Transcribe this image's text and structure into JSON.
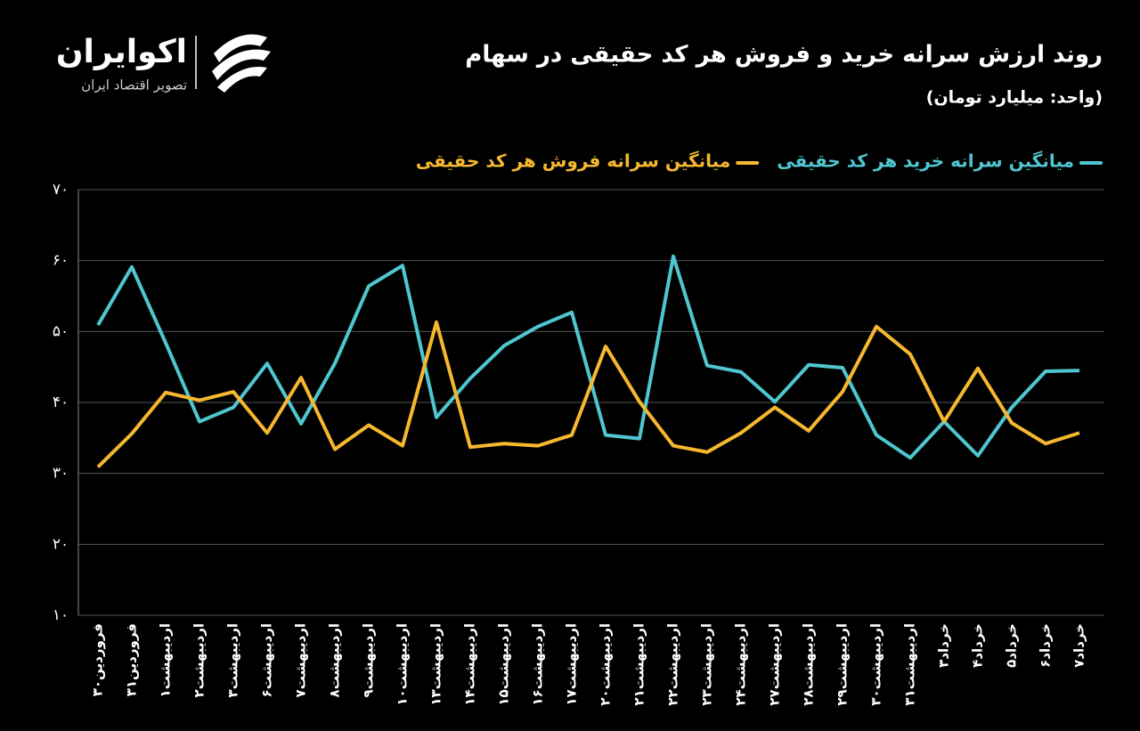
{
  "brand": {
    "name": "اکوایران",
    "tagline": "تصویر اقتصاد ایران"
  },
  "chart_data": {
    "type": "line",
    "title": "روند ارزش سرانه خرید و فروش هر کد حقیقی در سهام",
    "subtitle": "(واحد: میلیارد تومان)",
    "categories": [
      "۳۰فروردین",
      "۳۱فروردین",
      "۱اردیبهشت",
      "۲اردیبهشت",
      "۳اردیبهشت",
      "۶اردیبهشت",
      "۷اردیبهشت",
      "۸اردیبهشت",
      "۹اردیبهشت",
      "۱۰اردیبهشت",
      "۱۳اردیبهشت",
      "۱۴اردیبهشت",
      "۱۵اردیبهشت",
      "۱۶اردیبهشت",
      "۱۷اردیبهشت",
      "۲۰اردیبهشت",
      "۲۱اردیبهشت",
      "۲۲اردیبهشت",
      "۲۳اردیبهشت",
      "۲۴اردیبهشت",
      "۲۷اردیبهشت",
      "۲۸اردیبهشت",
      "۲۹اردیبهشت",
      "۳۰اردیبهشت",
      "۳۱اردیبهشت",
      "۳خرداد",
      "۴خرداد",
      "۵خرداد",
      "۶خرداد",
      "۷خرداد"
    ],
    "series": [
      {
        "name": "میانگین سرانه خرید هر کد حقیقی",
        "color": "#4fc6d0",
        "values": [
          50.9,
          59.1,
          48.4,
          37.3,
          39.3,
          45.5,
          37.0,
          45.5,
          56.4,
          59.3,
          37.9,
          43.4,
          48.0,
          50.7,
          52.7,
          35.4,
          34.9,
          60.6,
          45.2,
          44.3,
          40.1,
          45.3,
          44.9,
          35.4,
          32.2,
          37.3,
          32.5,
          39.3,
          44.4,
          44.5
        ]
      },
      {
        "name": "میانگین سرانه فروش هر کد حقیقی",
        "color": "#f5b82e",
        "values": [
          30.9,
          35.6,
          41.4,
          40.3,
          41.5,
          35.7,
          43.5,
          33.4,
          36.8,
          33.9,
          51.3,
          33.7,
          34.2,
          33.9,
          35.4,
          47.9,
          40.1,
          33.9,
          33.0,
          35.7,
          39.3,
          36.0,
          41.5,
          50.7,
          46.8,
          37.3,
          44.8,
          37.1,
          34.2,
          35.7
        ]
      }
    ],
    "ylim": [
      10,
      70
    ],
    "yticks": [
      {
        "value": 10,
        "label": "۱۰"
      },
      {
        "value": 20,
        "label": "۲۰"
      },
      {
        "value": 30,
        "label": "۳۰"
      },
      {
        "value": 40,
        "label": "۴۰"
      },
      {
        "value": 50,
        "label": "۵۰"
      },
      {
        "value": 60,
        "label": "۶۰"
      },
      {
        "value": 70,
        "label": "۷۰"
      }
    ],
    "grid": true
  }
}
